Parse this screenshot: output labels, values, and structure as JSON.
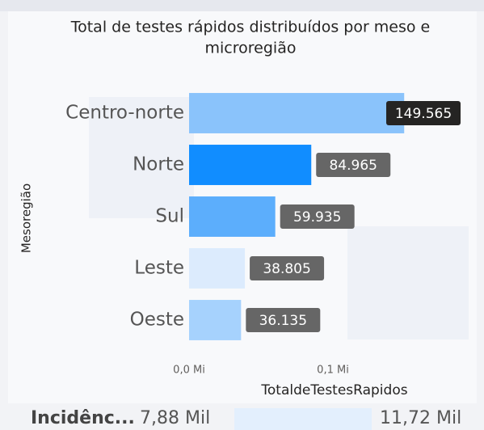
{
  "chart_data": {
    "type": "bar",
    "orientation": "horizontal",
    "title": "Total de testes rápidos distribuídos por meso e microregião",
    "y_axis_label": "Mesoregião",
    "x_axis_label": "TotaldeTestesRapidos",
    "categories": [
      "Centro-norte",
      "Norte",
      "Sul",
      "Leste",
      "Oeste"
    ],
    "values": [
      149565,
      84965,
      59935,
      38805,
      36135
    ],
    "value_labels": [
      "149.565",
      "84.965",
      "59.935",
      "38.805",
      "36.135"
    ],
    "colors": [
      "#8ac3fb",
      "#118dff",
      "#5caefc",
      "#dcebfd",
      "#a6d2fd"
    ],
    "xlim": [
      0,
      150000
    ],
    "xticks": [
      {
        "value": 0,
        "label": "0,0 Mi"
      },
      {
        "value": 100000,
        "label": "0,1 Mi"
      }
    ]
  },
  "kpi": {
    "label": "Incidênc...",
    "value_label": "7,88 Mil",
    "max_label": "11,72 Mil"
  }
}
